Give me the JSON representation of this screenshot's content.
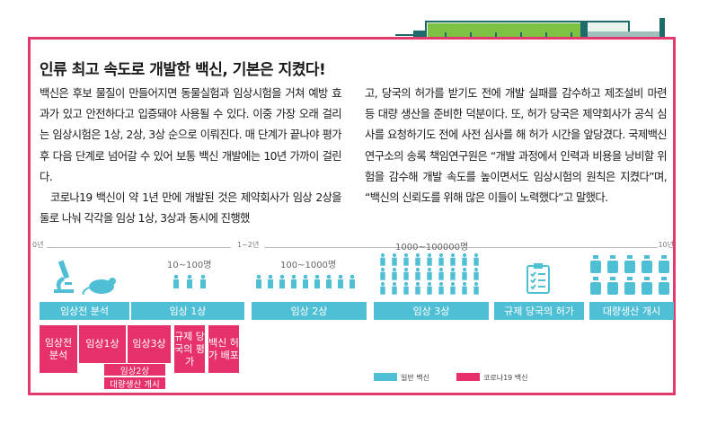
{
  "title": "인류 최고 속도로 개발한 백신, 기본은 지켰다!",
  "col1": {
    "p1": "백신은 후보 물질이 만들어지면 동물실험과 임상시험을 거쳐 예방 효과가 있고 안전하다고 입증돼야 사용될 수 있다. 이중 가장 오래 걸리는 임상시험은 1상, 2상, 3상 순으로 이뤄진다. 매 단계가 끝나야 평가 후 다음 단계로 넘어갈 수 있어 보통 백신 개발에는 10년 가까이 걸린다.",
    "p2": "코로나19 백신이 약 1년 만에 개발된 것은 제약회사가 임상 2상을 둘로 나눠 각각을 임상 1상, 3상과 동시에 진행했"
  },
  "col2": {
    "p1": "고, 당국의 허가를 받기도 전에 개발 실패를 감수하고 제조설비 마련 등 대량 생산을 준비한 덕분이다. 또, 허가 당국은 제약회사가 공식 심사를 요청하기도 전에 사전 심사를 해 허가 시간을 앞당겼다. 국제백신연구소의 송록 책임연구원은 “개발 과정에서 인력과 비용을 낭비할 위험을 감수해 개발 속도를 높이면서도 임상시험의 원칙은 지켰다”며, “백신의 신뢰도를 위해 많은 이들이 노력했다”고 말했다."
  },
  "timeline": {
    "start": "0년",
    "mid": "1~2년",
    "end": "10년",
    "counts": [
      "10~100명",
      "100~1000명",
      "1000~100000명"
    ],
    "general_stages": [
      "임상전 분석",
      "임상 1상",
      "임상 2상",
      "임상 3상",
      "규제 당국의 허가",
      "대량생산 개시"
    ],
    "covid_stages": {
      "preclinical": "임상전 분석",
      "phase1": "임상1상",
      "phase3": "임상3상",
      "phase2": "임상2상",
      "mass": "대량생산 개시",
      "review": "규제 당국의 평가",
      "approval": "백신 허가 배포"
    }
  },
  "legend": {
    "general": "일반 백신",
    "covid": "코로나19 백신"
  },
  "colors": {
    "accent_pink": "#e6316a",
    "frame_pink": "#e23a6c",
    "cyan": "#4fbfd6",
    "syringe_green": "#7dc243"
  },
  "icons": [
    "syringe-icon",
    "microscope-icon",
    "mouse-icon",
    "people-icon",
    "checklist-icon",
    "vial-icon"
  ]
}
